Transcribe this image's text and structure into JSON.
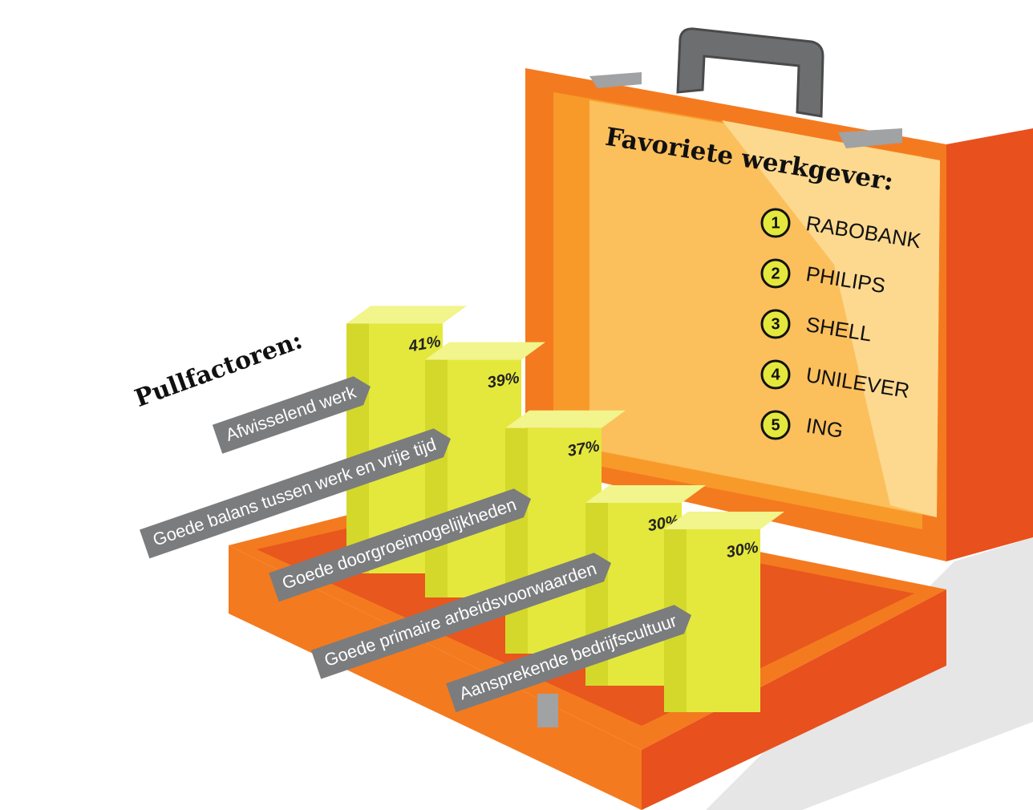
{
  "chart_data": {
    "type": "bar",
    "title": "Pullfactoren:",
    "categories": [
      "Afwisselend werk",
      "Goede balans tussen werk en vrije tijd",
      "Goede doorgroeimogelijkheden",
      "Goede primaire arbeidsvoorwaarden",
      "Aansprekende bedrijfscultuur"
    ],
    "values": [
      41,
      39,
      37,
      30,
      30
    ],
    "value_labels": [
      "41%",
      "39%",
      "37%",
      "30%",
      "30%"
    ],
    "color": "#e4e83c"
  },
  "employer_list": {
    "title": "Favoriete werkgever:",
    "items": [
      {
        "rank": 1,
        "name": "RABOBANK"
      },
      {
        "rank": 2,
        "name": "PHILIPS"
      },
      {
        "rank": 3,
        "name": "SHELL"
      },
      {
        "rank": 4,
        "name": "UNILEVER"
      },
      {
        "rank": 5,
        "name": "ING"
      }
    ]
  }
}
